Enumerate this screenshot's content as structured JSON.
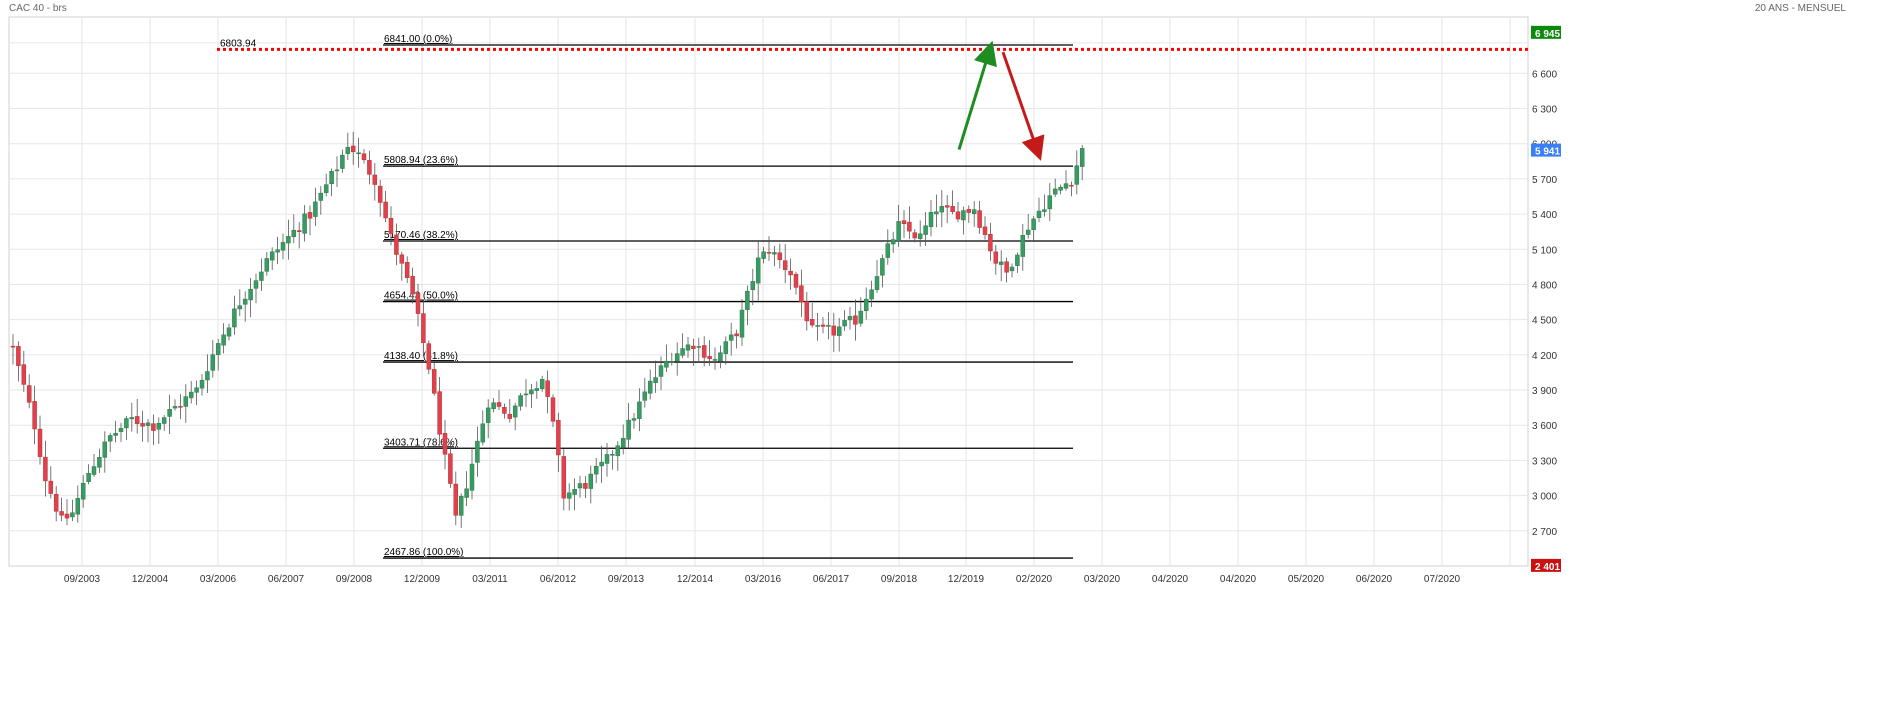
{
  "header": {
    "title": "CAC 40 - brs",
    "range": "20 ANS - MENSUEL"
  },
  "chart_data": {
    "type": "candlestick",
    "title": "CAC 40 - brs",
    "subtitle": "20 ANS - MENSUEL",
    "ylim": [
      2400,
      7080
    ],
    "y_ticks": [
      2700,
      3000,
      3300,
      3600,
      3900,
      4200,
      4500,
      4800,
      5100,
      5400,
      5700,
      6000,
      6300,
      6600
    ],
    "y_tick_labels": [
      "2 700",
      "3 000",
      "3 300",
      "3 600",
      "3 900",
      "4 200",
      "4 500",
      "4 800",
      "5 100",
      "5 400",
      "5 700",
      "6 000",
      "6 300",
      "6 600"
    ],
    "x_tick_labels": [
      "09/2003",
      "12/2004",
      "03/2006",
      "06/2007",
      "09/2008",
      "12/2009",
      "03/2011",
      "06/2012",
      "09/2013",
      "12/2014",
      "03/2016",
      "06/2017",
      "09/2018",
      "12/2019",
      "02/2020",
      "03/2020",
      "04/2020",
      "04/2020",
      "05/2020",
      "06/2020",
      "07/2020"
    ],
    "series": [
      {
        "name": "CAC 40",
        "anchors": [
          [
            0,
            4250
          ],
          [
            4,
            3600
          ],
          [
            6,
            3150
          ],
          [
            9,
            2780
          ],
          [
            11,
            2850
          ],
          [
            14,
            3200
          ],
          [
            18,
            3500
          ],
          [
            22,
            3650
          ],
          [
            26,
            3600
          ],
          [
            30,
            3750
          ],
          [
            34,
            3900
          ],
          [
            38,
            4300
          ],
          [
            42,
            4650
          ],
          [
            47,
            5000
          ],
          [
            51,
            5200
          ],
          [
            55,
            5400
          ],
          [
            60,
            5800
          ],
          [
            62,
            6000
          ],
          [
            64,
            5900
          ],
          [
            67,
            5700
          ],
          [
            70,
            5200
          ],
          [
            74,
            4700
          ],
          [
            77,
            4100
          ],
          [
            80,
            3300
          ],
          [
            82,
            2800
          ],
          [
            84,
            3100
          ],
          [
            88,
            3800
          ],
          [
            92,
            3700
          ],
          [
            95,
            3900
          ],
          [
            98,
            4000
          ],
          [
            100,
            3600
          ],
          [
            102,
            3000
          ],
          [
            106,
            3100
          ],
          [
            110,
            3300
          ],
          [
            114,
            3600
          ],
          [
            118,
            3950
          ],
          [
            122,
            4200
          ],
          [
            126,
            4300
          ],
          [
            130,
            4150
          ],
          [
            134,
            4400
          ],
          [
            138,
            5000
          ],
          [
            140,
            5100
          ],
          [
            144,
            4900
          ],
          [
            148,
            4400
          ],
          [
            152,
            4400
          ],
          [
            156,
            4500
          ],
          [
            160,
            4900
          ],
          [
            164,
            5300
          ],
          [
            168,
            5200
          ],
          [
            171,
            5450
          ],
          [
            174,
            5400
          ],
          [
            178,
            5450
          ],
          [
            182,
            5000
          ],
          [
            184,
            4900
          ],
          [
            188,
            5300
          ],
          [
            192,
            5550
          ],
          [
            196,
            5700
          ],
          [
            198,
            5940
          ]
        ]
      }
    ],
    "last_value": "5 941",
    "y_top_label": "6 945",
    "y_bottom_label": "2 401",
    "reference_line": {
      "value": 6803.94,
      "label": "6803.94",
      "color": "#ff0000"
    },
    "fibonacci_levels": [
      {
        "value": 6841.0,
        "label": "6841.00  (0.0%)"
      },
      {
        "value": 5808.94,
        "label": "5808.94  (23.6%)"
      },
      {
        "value": 5170.46,
        "label": "5170.46  (38.2%)"
      },
      {
        "value": 4654.43,
        "label": "4654.43  (50.0%)"
      },
      {
        "value": 4138.4,
        "label": "4138.40  (61.8%)"
      },
      {
        "value": 3403.71,
        "label": "3403.71  (78.6%)"
      },
      {
        "value": 2467.86,
        "label": "2467.86  (100.0%)"
      }
    ],
    "arrows": [
      {
        "direction": "up",
        "color": "#1e8c1e",
        "from_value": 5950,
        "to_value": 6780
      },
      {
        "direction": "down",
        "color": "#c41a1a",
        "from_value": 6780,
        "to_value": 5950
      }
    ],
    "colors": {
      "up": "#3a9b62",
      "down": "#e0424b",
      "grid": "#e6e6e6",
      "last": "#3a7ff5",
      "top": "#0d8a0d",
      "bottom": "#cc1111"
    },
    "grid": true
  }
}
